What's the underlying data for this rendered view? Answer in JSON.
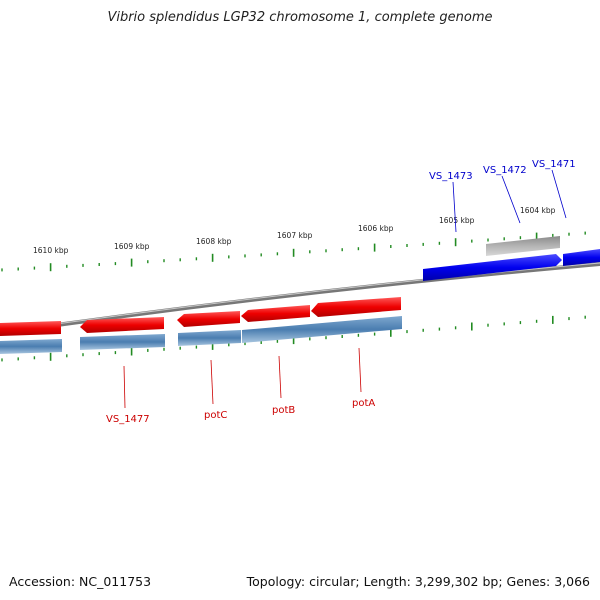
{
  "title": "Vibrio splendidus LGP32 chromosome 1, complete genome",
  "footer": {
    "accession": "Accession: NC_011753",
    "summary": "Topology: circular; Length: 3,299,302 bp; Genes: 3,066"
  },
  "colors": {
    "forward_cds": "#0000ee",
    "reverse_cds": "#ee0000",
    "reverse_track": "#4a7db0",
    "other_feature": "#a8a8a8",
    "backbone": "#888888",
    "ticks": "#228b22"
  },
  "scale_ticks": [
    {
      "label": "1610 kbp"
    },
    {
      "label": "1609 kbp"
    },
    {
      "label": "1608 kbp"
    },
    {
      "label": "1607 kbp"
    },
    {
      "label": "1606 kbp"
    },
    {
      "label": "1605 kbp"
    },
    {
      "label": "1604 kbp"
    }
  ],
  "gene_labels": [
    {
      "name": "VS_1473",
      "strand": "forward"
    },
    {
      "name": "VS_1472",
      "strand": "forward"
    },
    {
      "name": "VS_1471",
      "strand": "forward"
    },
    {
      "name": "VS_1477",
      "strand": "reverse"
    },
    {
      "name": "potC",
      "strand": "reverse"
    },
    {
      "name": "potB",
      "strand": "reverse"
    },
    {
      "name": "potA",
      "strand": "reverse"
    }
  ]
}
